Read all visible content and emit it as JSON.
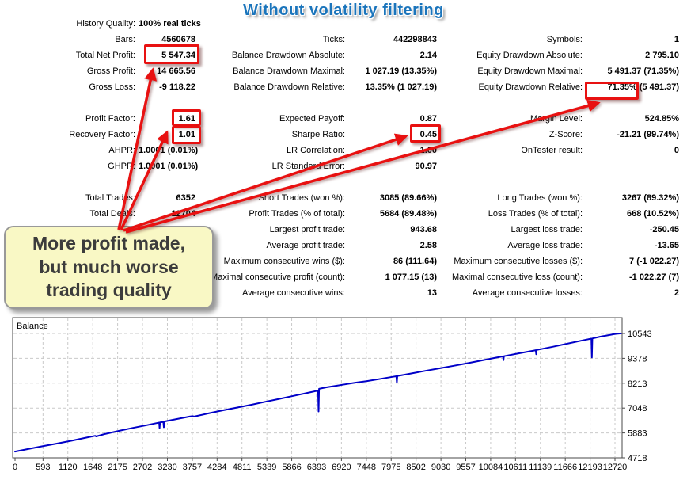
{
  "title": "Without volatility filtering",
  "callout": {
    "line1": "More profit made,",
    "line2": "but much worse",
    "line3": "trading quality"
  },
  "stats": {
    "block1": [
      {
        "c1l": "History Quality:",
        "c1v": "100% real ticks",
        "c2l": "",
        "c2v": "",
        "c3l": "",
        "c3v": ""
      },
      {
        "c1l": "Bars:",
        "c1v": "4560678",
        "c2l": "Ticks:",
        "c2v": "442298843",
        "c3l": "Symbols:",
        "c3v": "1"
      },
      {
        "c1l": "Total Net Profit:",
        "c1v": "5 547.34",
        "c2l": "Balance Drawdown Absolute:",
        "c2v": "2.14",
        "c3l": "Equity Drawdown Absolute:",
        "c3v": "2 795.10"
      },
      {
        "c1l": "Gross Profit:",
        "c1v": "14 665.56",
        "c2l": "Balance Drawdown Maximal:",
        "c2v": "1 027.19 (13.35%)",
        "c3l": "Equity Drawdown Maximal:",
        "c3v": "5 491.37 (71.35%)"
      },
      {
        "c1l": "Gross Loss:",
        "c1v": "-9 118.22",
        "c2l": "Balance Drawdown Relative:",
        "c2v": "13.35% (1 027.19)",
        "c3l": "Equity Drawdown Relative:",
        "c3v": "71.35% (5 491.37)"
      }
    ],
    "block2": [
      {
        "c1l": "Profit Factor:",
        "c1v": "1.61",
        "c2l": "Expected Payoff:",
        "c2v": "0.87",
        "c3l": "Margin Level:",
        "c3v": "524.85%"
      },
      {
        "c1l": "Recovery Factor:",
        "c1v": "1.01",
        "c2l": "Sharpe Ratio:",
        "c2v": "0.45",
        "c3l": "Z-Score:",
        "c3v": "-21.21 (99.74%)"
      },
      {
        "c1l": "AHPR:",
        "c1v": "1.0001 (0.01%)",
        "c2l": "LR Correlation:",
        "c2v": "1.00",
        "c3l": "OnTester result:",
        "c3v": "0"
      },
      {
        "c1l": "GHPR:",
        "c1v": "1.0001 (0.01%)",
        "c2l": "LR Standard Error:",
        "c2v": "90.97",
        "c3l": "",
        "c3v": ""
      }
    ],
    "block3": [
      {
        "c1l": "Total Trades:",
        "c1v": "6352",
        "c2l": "Short Trades (won %):",
        "c2v": "3085 (89.66%)",
        "c3l": "Long Trades (won %):",
        "c3v": "3267 (89.32%)"
      },
      {
        "c1l": "Total Deals:",
        "c1v": "12704",
        "c2l": "Profit Trades (% of total):",
        "c2v": "5684 (89.48%)",
        "c3l": "Loss Trades (% of total):",
        "c3v": "668 (10.52%)"
      },
      {
        "c1l": "",
        "c1v": "",
        "c2l": "Largest profit trade:",
        "c2v": "943.68",
        "c3l": "Largest loss trade:",
        "c3v": "-250.45"
      },
      {
        "c1l": "",
        "c1v": "",
        "c2l": "Average profit trade:",
        "c2v": "2.58",
        "c3l": "Average loss trade:",
        "c3v": "-13.65"
      },
      {
        "c1l": "",
        "c1v": "",
        "c2l": "Maximum consecutive wins ($):",
        "c2v": "86 (111.64)",
        "c3l": "Maximum consecutive losses ($):",
        "c3v": "7 (-1 022.27)"
      },
      {
        "c1l": "",
        "c1v": "",
        "c2l": "Maximal consecutive profit (count):",
        "c2v": "1 077.15 (13)",
        "c3l": "Maximal consecutive loss (count):",
        "c3v": "-1 022.27 (7)"
      },
      {
        "c1l": "",
        "c1v": "",
        "c2l": "Average consecutive wins:",
        "c2v": "13",
        "c3l": "Average consecutive losses:",
        "c3v": "2"
      }
    ]
  },
  "chart_data": {
    "type": "line",
    "title": "Balance",
    "x_ticks": [
      0,
      593,
      1120,
      1648,
      2175,
      2702,
      3230,
      3757,
      4284,
      4811,
      5339,
      5866,
      6393,
      6920,
      7448,
      7975,
      8502,
      9030,
      9557,
      10084,
      10611,
      11139,
      11666,
      12193,
      12720
    ],
    "y_ticks": [
      4718,
      5883,
      7048,
      8213,
      9378,
      10543
    ],
    "x_range": [
      0,
      12850
    ],
    "y_range": [
      4718,
      11285
    ],
    "grid": "dashed",
    "legend_position": "top-left-inside",
    "series": [
      {
        "name": "Balance",
        "color": "#0000C8",
        "points": [
          [
            0,
            5010
          ],
          [
            300,
            5140
          ],
          [
            600,
            5270
          ],
          [
            900,
            5390
          ],
          [
            1200,
            5520
          ],
          [
            1500,
            5660
          ],
          [
            1700,
            5750
          ],
          [
            1720,
            5720
          ],
          [
            1900,
            5830
          ],
          [
            2200,
            5980
          ],
          [
            2500,
            6120
          ],
          [
            2800,
            6250
          ],
          [
            3040,
            6360
          ],
          [
            3055,
            6370
          ],
          [
            3065,
            6110
          ],
          [
            3075,
            6380
          ],
          [
            3130,
            6400
          ],
          [
            3145,
            6410
          ],
          [
            3155,
            6150
          ],
          [
            3165,
            6420
          ],
          [
            3400,
            6520
          ],
          [
            3700,
            6650
          ],
          [
            3760,
            6670
          ],
          [
            3800,
            6650
          ],
          [
            4100,
            6800
          ],
          [
            4400,
            6940
          ],
          [
            4700,
            7070
          ],
          [
            5000,
            7200
          ],
          [
            5300,
            7340
          ],
          [
            5600,
            7480
          ],
          [
            5900,
            7620
          ],
          [
            6200,
            7760
          ],
          [
            6410,
            7860
          ],
          [
            6425,
            7870
          ],
          [
            6435,
            6890
          ],
          [
            6445,
            7950
          ],
          [
            6600,
            8020
          ],
          [
            6800,
            8090
          ],
          [
            7000,
            8160
          ],
          [
            7200,
            8230
          ],
          [
            7450,
            8310
          ],
          [
            7700,
            8400
          ],
          [
            8000,
            8510
          ],
          [
            8085,
            8540
          ],
          [
            8095,
            8240
          ],
          [
            8105,
            8550
          ],
          [
            8400,
            8670
          ],
          [
            8700,
            8790
          ],
          [
            9000,
            8910
          ],
          [
            9300,
            9030
          ],
          [
            9600,
            9150
          ],
          [
            9900,
            9280
          ],
          [
            10200,
            9410
          ],
          [
            10345,
            9470
          ],
          [
            10355,
            9290
          ],
          [
            10365,
            9480
          ],
          [
            10700,
            9620
          ],
          [
            11000,
            9740
          ],
          [
            11040,
            9760
          ],
          [
            11050,
            9570
          ],
          [
            11060,
            9770
          ],
          [
            11400,
            9920
          ],
          [
            11700,
            10060
          ],
          [
            12000,
            10200
          ],
          [
            12220,
            10300
          ],
          [
            12230,
            9420
          ],
          [
            12240,
            10310
          ],
          [
            12400,
            10390
          ],
          [
            12550,
            10450
          ],
          [
            12720,
            10520
          ],
          [
            12850,
            10545
          ]
        ]
      }
    ]
  },
  "colors": {
    "title": "#1b75bc",
    "annotation": "#e81111",
    "callout_bg": "#f9f8c5",
    "balance_line": "#0000C8"
  }
}
